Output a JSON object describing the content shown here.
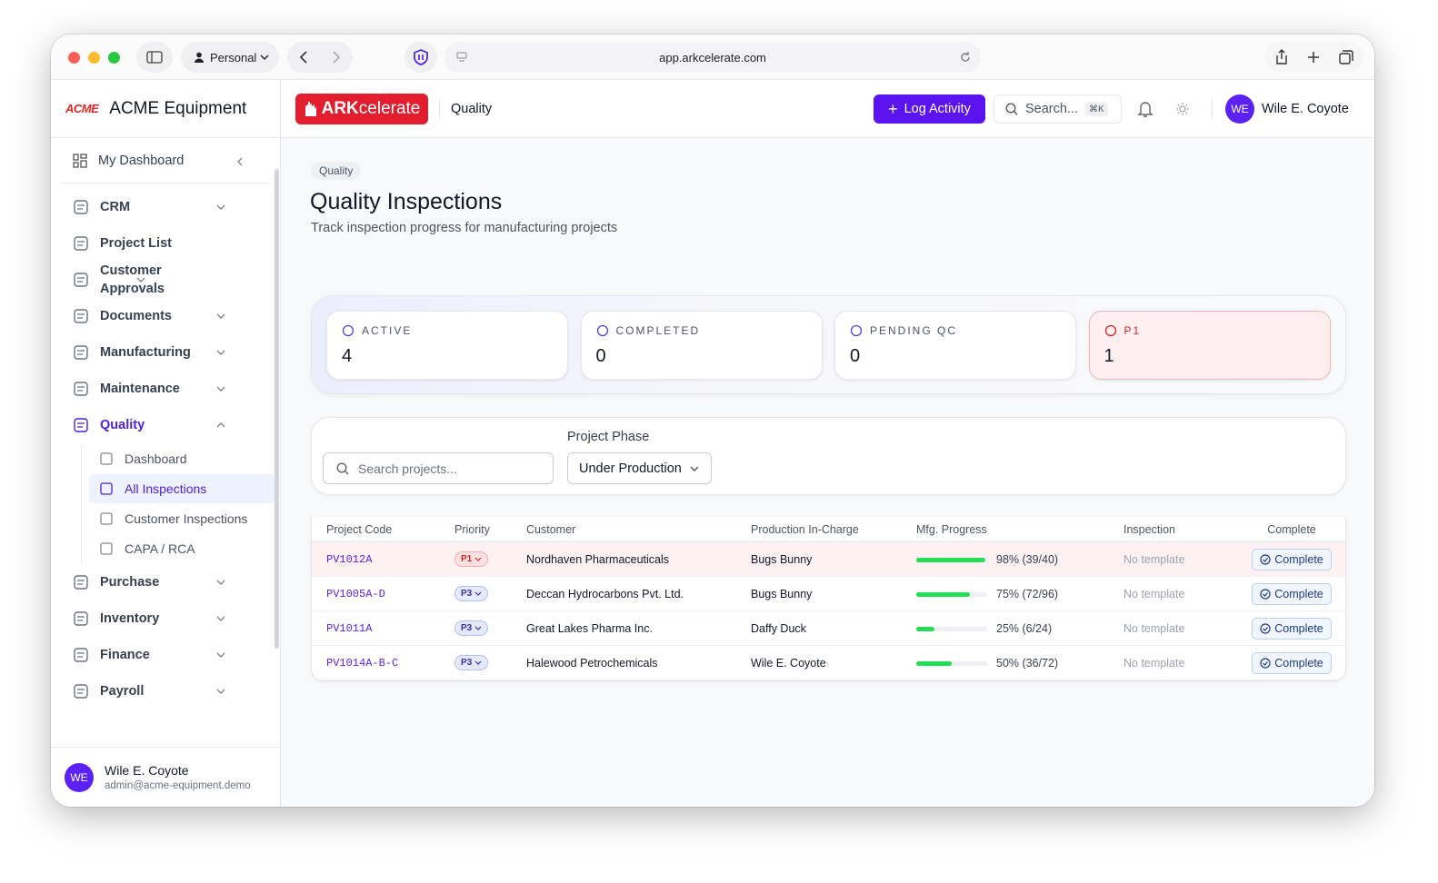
{
  "browser": {
    "profile": "Personal",
    "url": "app.arkcelerate.com"
  },
  "sidebar": {
    "logo": "ACME",
    "brand": "ACME Equipment",
    "dashboard": "My Dashboard",
    "items": [
      {
        "label": "CRM",
        "expandable": true
      },
      {
        "label": "Project List",
        "expandable": false
      },
      {
        "label": "Customer Approvals",
        "expandable": true
      },
      {
        "label": "Documents",
        "expandable": true
      },
      {
        "label": "Manufacturing",
        "expandable": true
      },
      {
        "label": "Maintenance",
        "expandable": true
      },
      {
        "label": "Quality",
        "expandable": true,
        "open": true,
        "children": [
          {
            "label": "Dashboard"
          },
          {
            "label": "All Inspections",
            "active": true
          },
          {
            "label": "Customer Inspections"
          },
          {
            "label": "CAPA / RCA"
          }
        ]
      },
      {
        "label": "Purchase",
        "expandable": true
      },
      {
        "label": "Inventory",
        "expandable": true
      },
      {
        "label": "Finance",
        "expandable": true
      },
      {
        "label": "Payroll",
        "expandable": true
      }
    ],
    "user": {
      "initials": "WE",
      "name": "Wile E. Coyote",
      "email": "admin@acme-equipment.demo"
    }
  },
  "header": {
    "logo_bold": "ARK",
    "logo_rest": "celerate",
    "section": "Quality",
    "log_activity": "Log Activity",
    "search": "Search...",
    "shortcut": "⌘K",
    "user_initials": "WE",
    "user_name": "Wile E. Coyote"
  },
  "page": {
    "breadcrumb": "Quality",
    "title": "Quality Inspections",
    "subtitle": "Track inspection progress for manufacturing projects"
  },
  "stats": [
    {
      "label": "ACTIVE",
      "value": 4
    },
    {
      "label": "COMPLETED",
      "value": 0
    },
    {
      "label": "PENDING QC",
      "value": 0
    },
    {
      "label": "P1",
      "value": 1,
      "alert": true
    }
  ],
  "filters": {
    "search_placeholder": "Search projects...",
    "phase_label": "Project Phase",
    "phase_value": "Under Production"
  },
  "table": {
    "columns": [
      "Project Code",
      "Priority",
      "Customer",
      "Production In-Charge",
      "Mfg. Progress",
      "Inspection",
      "Complete"
    ],
    "rows": [
      {
        "code": "PV1012A",
        "priority": "P1",
        "alert": true,
        "customer": "Nordhaven Pharmaceuticals",
        "in_charge": "Bugs Bunny",
        "progress": 98,
        "progress_label": "98% (39/40)",
        "inspection": "No template",
        "action": "Complete"
      },
      {
        "code": "PV1005A-D",
        "priority": "P3",
        "customer": "Deccan Hydrocarbons Pvt. Ltd.",
        "in_charge": "Bugs Bunny",
        "progress": 75,
        "progress_label": "75% (72/96)",
        "inspection": "No template",
        "action": "Complete"
      },
      {
        "code": "PV1011A",
        "priority": "P3",
        "customer": "Great Lakes Pharma Inc.",
        "in_charge": "Daffy Duck",
        "progress": 25,
        "progress_label": "25% (6/24)",
        "inspection": "No template",
        "action": "Complete"
      },
      {
        "code": "PV1014A-B-C",
        "priority": "P3",
        "customer": "Halewood Petrochemicals",
        "in_charge": "Wile E. Coyote",
        "progress": 50,
        "progress_label": "50% (36/72)",
        "inspection": "No template",
        "action": "Complete"
      }
    ]
  }
}
